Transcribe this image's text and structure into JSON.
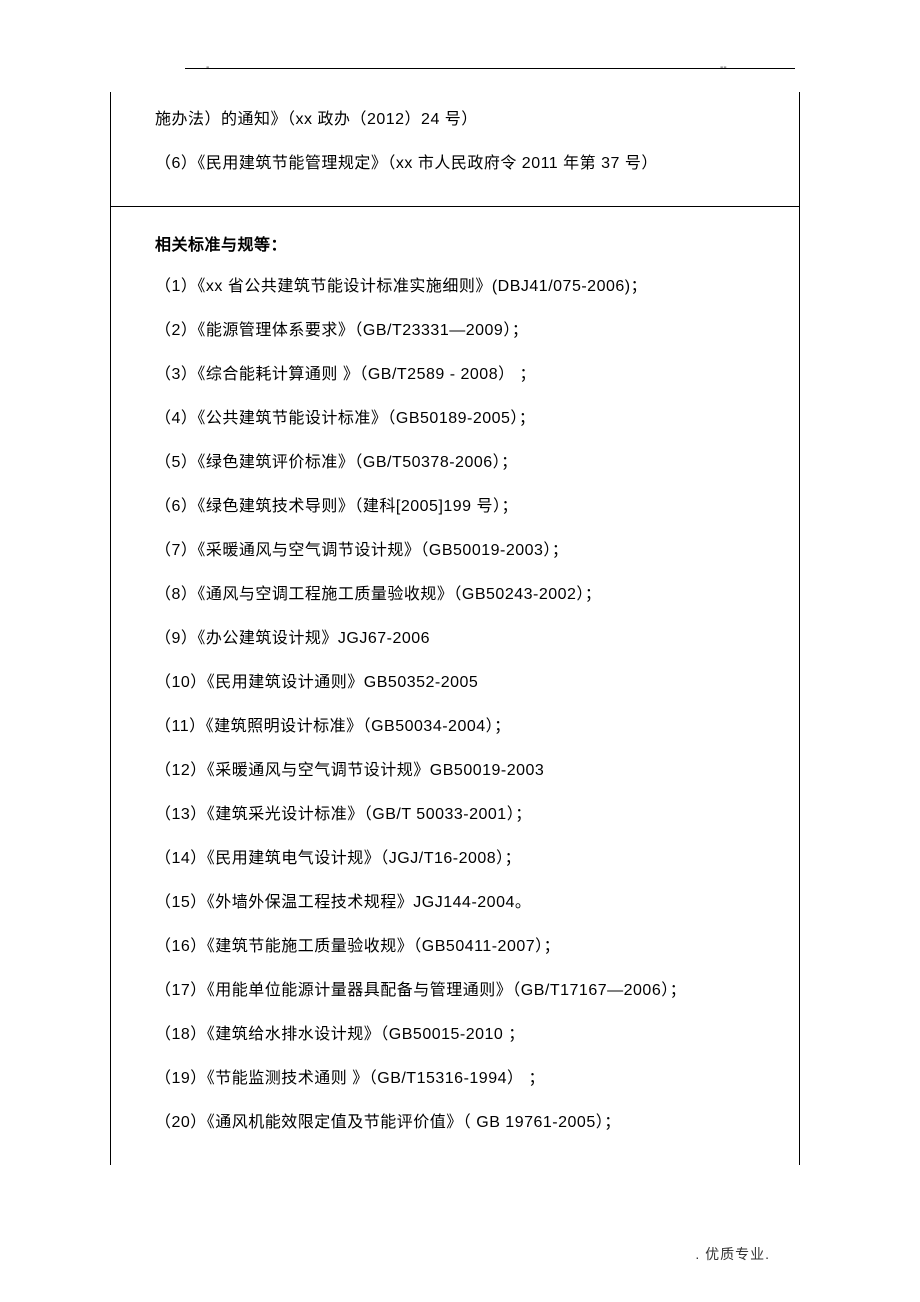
{
  "header": {
    "dash_left": "-",
    "dash_right": "--"
  },
  "top_cell": {
    "line1": "施办法）的通知》（xx 政办（2012）24 号）",
    "line2": "（6）《民用建筑节能管理规定》（xx 市人民政府令 2011 年第  37  号）"
  },
  "standards": {
    "heading": "相关标准与规等：",
    "items": [
      "（1）《xx 省公共建筑节能设计标准实施细则》(DBJ41/075-2006)；",
      "（2）《能源管理体系要求》（GB/T23331—2009）；",
      "（3）《综合能耗计算通则 》（GB/T2589 - 2008）   ；",
      "（4）《公共建筑节能设计标准》（GB50189-2005）；",
      "（5）《绿色建筑评价标准》（GB/T50378-2006）；",
      "（6）《绿色建筑技术导则》（建科[2005]199 号）；",
      "（7）《采暖通风与空气调节设计规》（GB50019-2003）；",
      "（8）《通风与空调工程施工质量验收规》（GB50243-2002）；",
      "（9）《办公建筑设计规》JGJ67-2006",
      "（10）《民用建筑设计通则》GB50352-2005",
      "（11）《建筑照明设计标准》（GB50034-2004）；",
      "（12）《采暖通风与空气调节设计规》GB50019-2003",
      "（13）《建筑采光设计标准》（GB/T 50033-2001）；",
      "（14）《民用建筑电气设计规》（JGJ/T16-2008）；",
      "（15）《外墙外保温工程技术规程》JGJ144-2004。",
      "（16）《建筑节能施工质量验收规》（GB50411-2007）；",
      "（17）《用能单位能源计量器具配备与管理通则》（GB/T17167—2006）；",
      "（18）《建筑给水排水设计规》（GB50015-2010   ；",
      "（19）《节能监测技术通则 》（GB/T15316-1994）   ；",
      "（20）《通风机能效限定值及节能评价值》（ GB 19761-2005）；"
    ]
  },
  "footer": ". 优质专业."
}
